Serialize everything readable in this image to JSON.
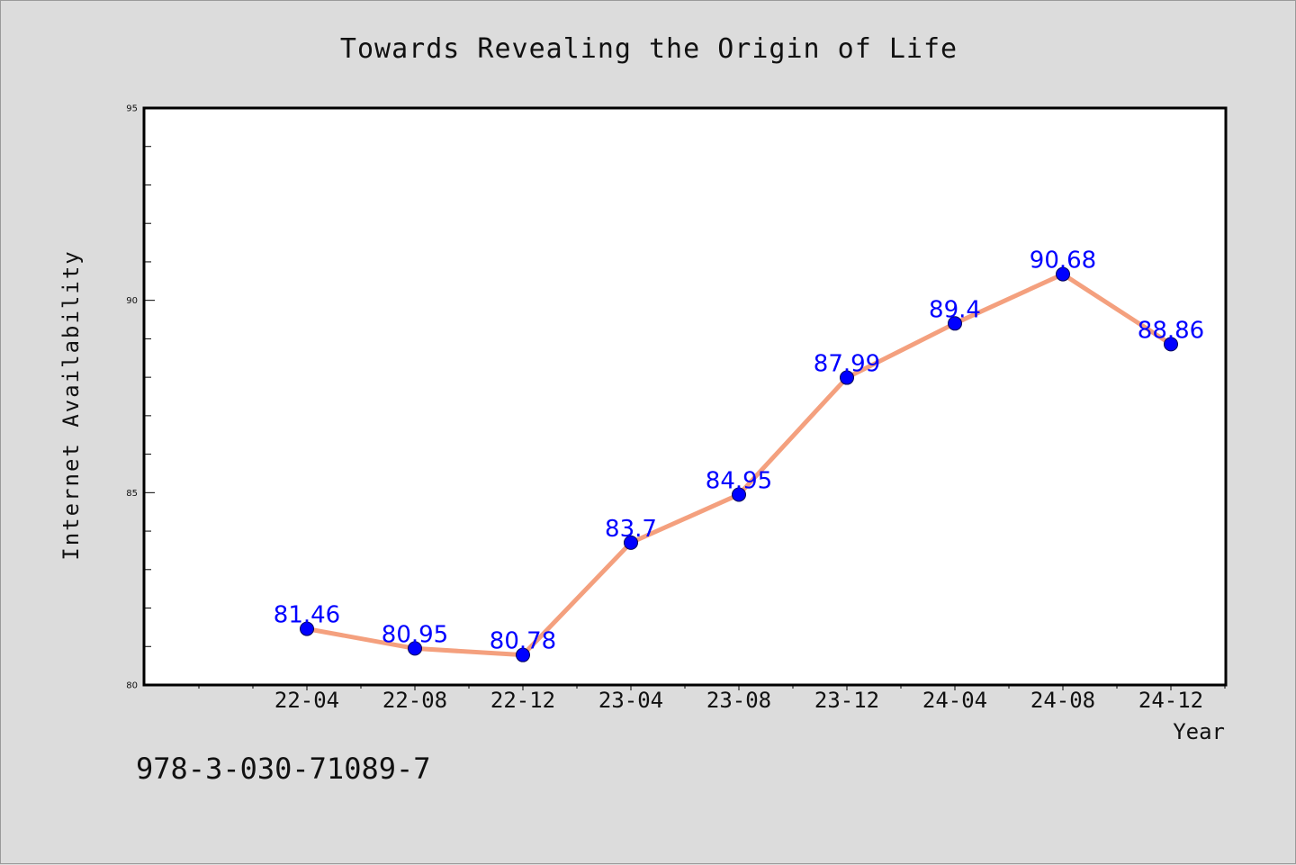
{
  "chart_data": {
    "type": "line",
    "title": "Towards Revealing the Origin of Life",
    "xlabel": "Year",
    "ylabel": "Internet Availability",
    "categories": [
      "22-04",
      "22-08",
      "22-12",
      "23-04",
      "23-08",
      "23-12",
      "24-04",
      "24-08",
      "24-12"
    ],
    "values": [
      81.46,
      80.95,
      80.78,
      83.7,
      84.95,
      87.99,
      89.4,
      90.68,
      88.86
    ],
    "data_labels": [
      "81.46",
      "80.95",
      "80.78",
      "83.7",
      "84.95",
      "87.99",
      "89.4",
      "90.68",
      "88.86"
    ],
    "ylim": [
      80,
      95
    ],
    "yticks": [
      80,
      85,
      90,
      95
    ],
    "ytick_labels": [
      "80",
      "85",
      "90",
      "95"
    ],
    "grid": false,
    "legend": "none",
    "footer": "978-3-030-71089-7",
    "colors": {
      "line": "#f4a07e",
      "marker": "#0000ff",
      "data_label": "#0000ff",
      "plot_background": "#ffffff",
      "page_background": "#dcdcdc"
    }
  }
}
